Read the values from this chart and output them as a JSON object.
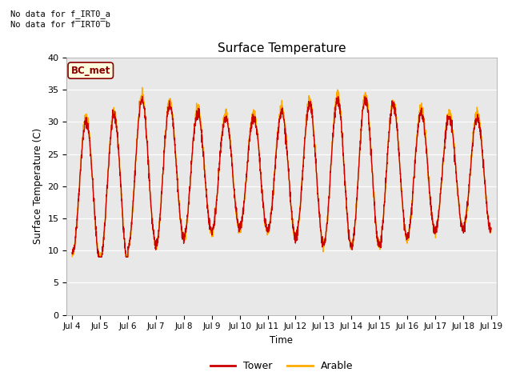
{
  "title": "Surface Temperature",
  "ylabel": "Surface Temperature (C)",
  "xlabel": "Time",
  "ylim": [
    0,
    40
  ],
  "yticks": [
    0,
    5,
    10,
    15,
    20,
    25,
    30,
    35,
    40
  ],
  "xtick_labels": [
    "Jul 4",
    "Jul 5",
    "Jul 6",
    "Jul 7",
    "Jul 8",
    "Jul 9",
    "Jul 10",
    "Jul 11",
    "Jul 12",
    "Jul 13",
    "Jul 14",
    "Jul 15",
    "Jul 16",
    "Jul 17",
    "Jul 18",
    "Jul 19"
  ],
  "no_data_text1": "No data for f_IRT0_a",
  "no_data_text2": "No data for f̅IRT0̅b",
  "bc_met_label": "BC_met",
  "tower_color": "#cc0000",
  "arable_color": "#ffaa00",
  "background_color": "#e8e8e8",
  "legend_entries": [
    "Tower",
    "Arable"
  ],
  "figsize": [
    6.4,
    4.8
  ],
  "dpi": 100
}
